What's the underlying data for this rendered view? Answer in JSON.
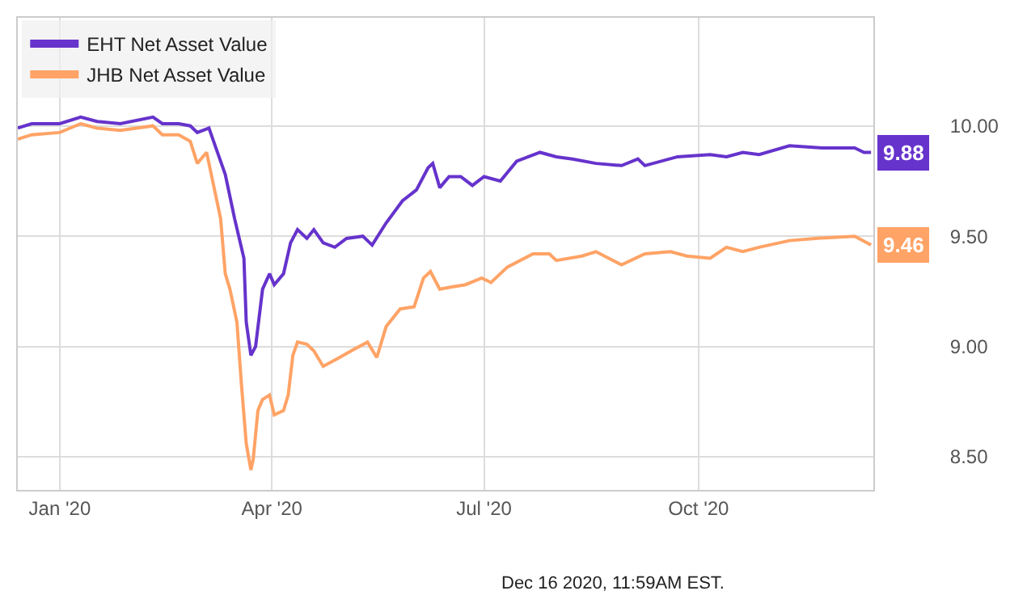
{
  "chart_data": {
    "type": "line",
    "xlim": [
      "2019-12-14",
      "2020-12-15"
    ],
    "ylim": [
      8.35,
      10.49
    ],
    "xticks": [
      {
        "value": "2020-01-01",
        "label": "Jan '20"
      },
      {
        "value": "2020-04-01",
        "label": "Apr '20"
      },
      {
        "value": "2020-07-01",
        "label": "Jul '20"
      },
      {
        "value": "2020-10-01",
        "label": "Oct '20"
      }
    ],
    "yticks": [
      {
        "value": 8.5,
        "label": "8.50"
      },
      {
        "value": 9,
        "label": "9.00"
      },
      {
        "value": 9.5,
        "label": "9.50"
      },
      {
        "value": 10,
        "label": "10.00"
      }
    ],
    "grid": true,
    "legend": "top left",
    "marker": "none",
    "line_style": "solid",
    "annotations": [
      "Dec 16 2020, 11:59AM EST."
    ],
    "series": [
      {
        "name": "EHT Net Asset Value",
        "color": "#6633cc",
        "x": [
          "2019-12-14",
          "2019-12-20",
          "2020-01-01",
          "2020-01-10",
          "2020-01-17",
          "2020-01-27",
          "2020-02-10",
          "2020-02-14",
          "2020-02-21",
          "2020-02-26",
          "2020-02-29",
          "2020-03-05",
          "2020-03-07",
          "2020-03-12",
          "2020-03-16",
          "2020-03-20",
          "2020-03-21",
          "2020-03-23",
          "2020-03-25",
          "2020-03-28",
          "2020-03-31",
          "2020-04-02",
          "2020-04-06",
          "2020-04-09",
          "2020-04-12",
          "2020-04-16",
          "2020-04-19",
          "2020-04-23",
          "2020-04-28",
          "2020-05-03",
          "2020-05-10",
          "2020-05-14",
          "2020-05-20",
          "2020-05-27",
          "2020-06-02",
          "2020-06-07",
          "2020-06-09",
          "2020-06-12",
          "2020-06-16",
          "2020-06-21",
          "2020-06-26",
          "2020-07-01",
          "2020-07-08",
          "2020-07-15",
          "2020-07-25",
          "2020-08-01",
          "2020-08-08",
          "2020-08-18",
          "2020-08-29",
          "2020-09-05",
          "2020-09-08",
          "2020-09-22",
          "2020-10-06",
          "2020-10-13",
          "2020-10-20",
          "2020-10-27",
          "2020-11-09",
          "2020-11-23",
          "2020-12-07",
          "2020-12-11",
          "2020-12-14"
        ],
        "values": [
          9.99,
          10.01,
          10.01,
          10.04,
          10.02,
          10.01,
          10.04,
          10.01,
          10.01,
          10.0,
          9.97,
          9.99,
          9.93,
          9.78,
          9.58,
          9.4,
          9.11,
          8.96,
          9.0,
          9.26,
          9.33,
          9.28,
          9.33,
          9.47,
          9.53,
          9.49,
          9.53,
          9.47,
          9.45,
          9.49,
          9.5,
          9.46,
          9.56,
          9.66,
          9.71,
          9.81,
          9.83,
          9.72,
          9.77,
          9.77,
          9.73,
          9.77,
          9.75,
          9.84,
          9.88,
          9.86,
          9.85,
          9.83,
          9.82,
          9.85,
          9.82,
          9.86,
          9.87,
          9.86,
          9.88,
          9.87,
          9.91,
          9.9,
          9.9,
          9.88,
          9.88
        ],
        "value_labels": [
          null,
          null,
          null,
          null,
          null,
          null,
          null,
          null,
          null,
          null,
          null,
          null,
          null,
          null,
          null,
          null,
          null,
          null,
          null,
          null,
          null,
          null,
          null,
          null,
          null,
          null,
          null,
          null,
          null,
          null,
          null,
          null,
          null,
          null,
          null,
          null,
          null,
          null,
          null,
          null,
          null,
          null,
          null,
          null,
          null,
          null,
          null,
          null,
          null,
          null,
          null,
          null,
          null,
          null,
          null,
          null,
          null,
          null,
          null,
          null,
          "9.88"
        ]
      },
      {
        "name": "JHB Net Asset Value",
        "color": "#ffa366",
        "x": [
          "2019-12-14",
          "2019-12-20",
          "2020-01-01",
          "2020-01-10",
          "2020-01-17",
          "2020-01-27",
          "2020-02-10",
          "2020-02-14",
          "2020-02-21",
          "2020-02-26",
          "2020-02-29",
          "2020-03-04",
          "2020-03-07",
          "2020-03-10",
          "2020-03-12",
          "2020-03-14",
          "2020-03-17",
          "2020-03-19",
          "2020-03-21",
          "2020-03-23",
          "2020-03-24",
          "2020-03-26",
          "2020-03-28",
          "2020-03-31",
          "2020-04-02",
          "2020-04-06",
          "2020-04-08",
          "2020-04-10",
          "2020-04-12",
          "2020-04-16",
          "2020-04-19",
          "2020-04-23",
          "2020-04-30",
          "2020-05-05",
          "2020-05-12",
          "2020-05-16",
          "2020-05-20",
          "2020-05-26",
          "2020-06-01",
          "2020-06-05",
          "2020-06-08",
          "2020-06-12",
          "2020-06-17",
          "2020-06-23",
          "2020-06-30",
          "2020-07-04",
          "2020-07-11",
          "2020-07-22",
          "2020-07-29",
          "2020-08-01",
          "2020-08-12",
          "2020-08-18",
          "2020-08-29",
          "2020-09-08",
          "2020-09-19",
          "2020-09-26",
          "2020-10-06",
          "2020-10-13",
          "2020-10-20",
          "2020-10-27",
          "2020-11-09",
          "2020-11-20",
          "2020-12-07",
          "2020-12-14"
        ],
        "values": [
          9.94,
          9.96,
          9.97,
          10.01,
          9.99,
          9.98,
          10.0,
          9.96,
          9.96,
          9.93,
          9.83,
          9.88,
          9.73,
          9.58,
          9.33,
          9.26,
          9.11,
          8.82,
          8.56,
          8.44,
          8.49,
          8.71,
          8.76,
          8.78,
          8.69,
          8.71,
          8.78,
          8.96,
          9.02,
          9.01,
          8.98,
          8.91,
          8.95,
          8.98,
          9.02,
          8.95,
          9.09,
          9.17,
          9.18,
          9.31,
          9.34,
          9.26,
          9.27,
          9.28,
          9.31,
          9.29,
          9.36,
          9.42,
          9.42,
          9.39,
          9.41,
          9.43,
          9.37,
          9.42,
          9.43,
          9.41,
          9.4,
          9.45,
          9.43,
          9.45,
          9.48,
          9.49,
          9.5,
          9.46
        ],
        "value_labels": [
          null,
          null,
          null,
          null,
          null,
          null,
          null,
          null,
          null,
          null,
          null,
          null,
          null,
          null,
          null,
          null,
          null,
          null,
          null,
          null,
          null,
          null,
          null,
          null,
          null,
          null,
          null,
          null,
          null,
          null,
          null,
          null,
          null,
          null,
          null,
          null,
          null,
          null,
          null,
          null,
          null,
          null,
          null,
          null,
          null,
          null,
          null,
          null,
          null,
          null,
          null,
          null,
          null,
          null,
          null,
          null,
          null,
          null,
          null,
          null,
          null,
          null,
          null,
          "9.46"
        ]
      }
    ]
  }
}
